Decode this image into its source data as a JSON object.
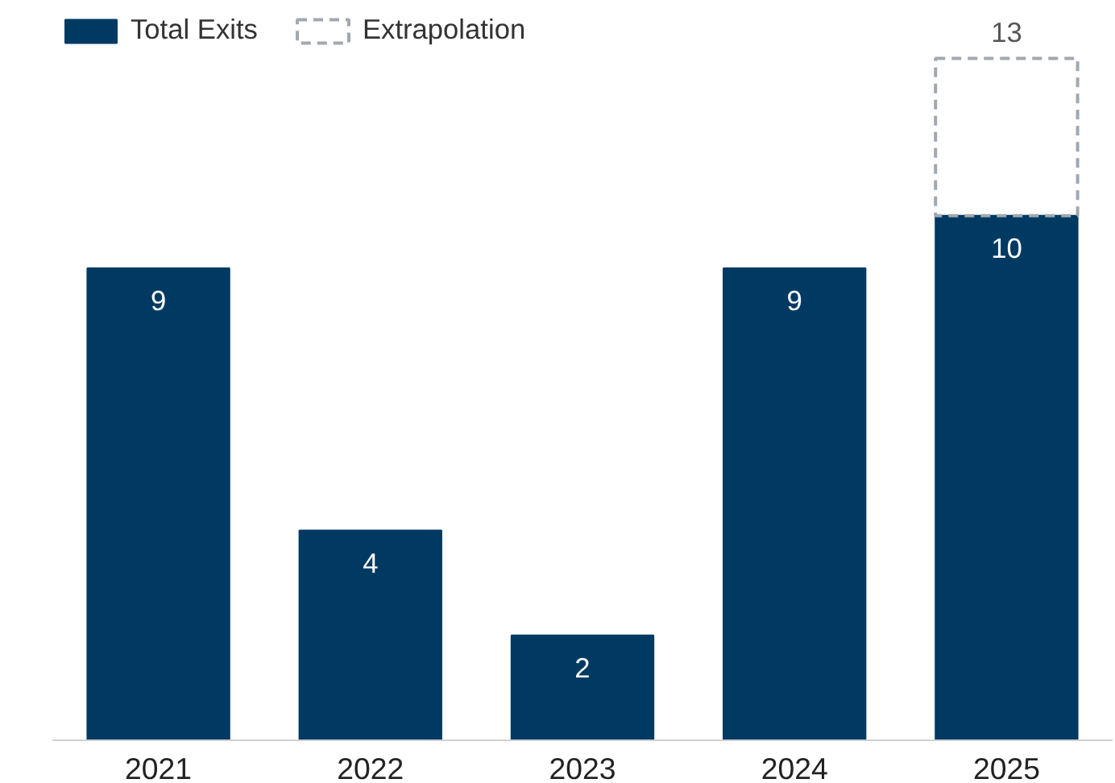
{
  "chart_data": {
    "type": "bar",
    "stacked": true,
    "categories": [
      "2021",
      "2022",
      "2023",
      "2024",
      "2025"
    ],
    "series": [
      {
        "name": "Total Exits",
        "color": "#003a63",
        "values": [
          9,
          4,
          2,
          9,
          10
        ],
        "value_labels": [
          "9",
          "4",
          "2",
          "9",
          "10"
        ]
      },
      {
        "name": "Extrapolation",
        "color": "#a0a8b0",
        "line_style": "dashed",
        "values": [
          null,
          null,
          null,
          null,
          3
        ]
      }
    ],
    "totals": [
      null,
      null,
      null,
      null,
      "13"
    ],
    "tick_labels": "x",
    "grid": false,
    "legend": "top left"
  }
}
